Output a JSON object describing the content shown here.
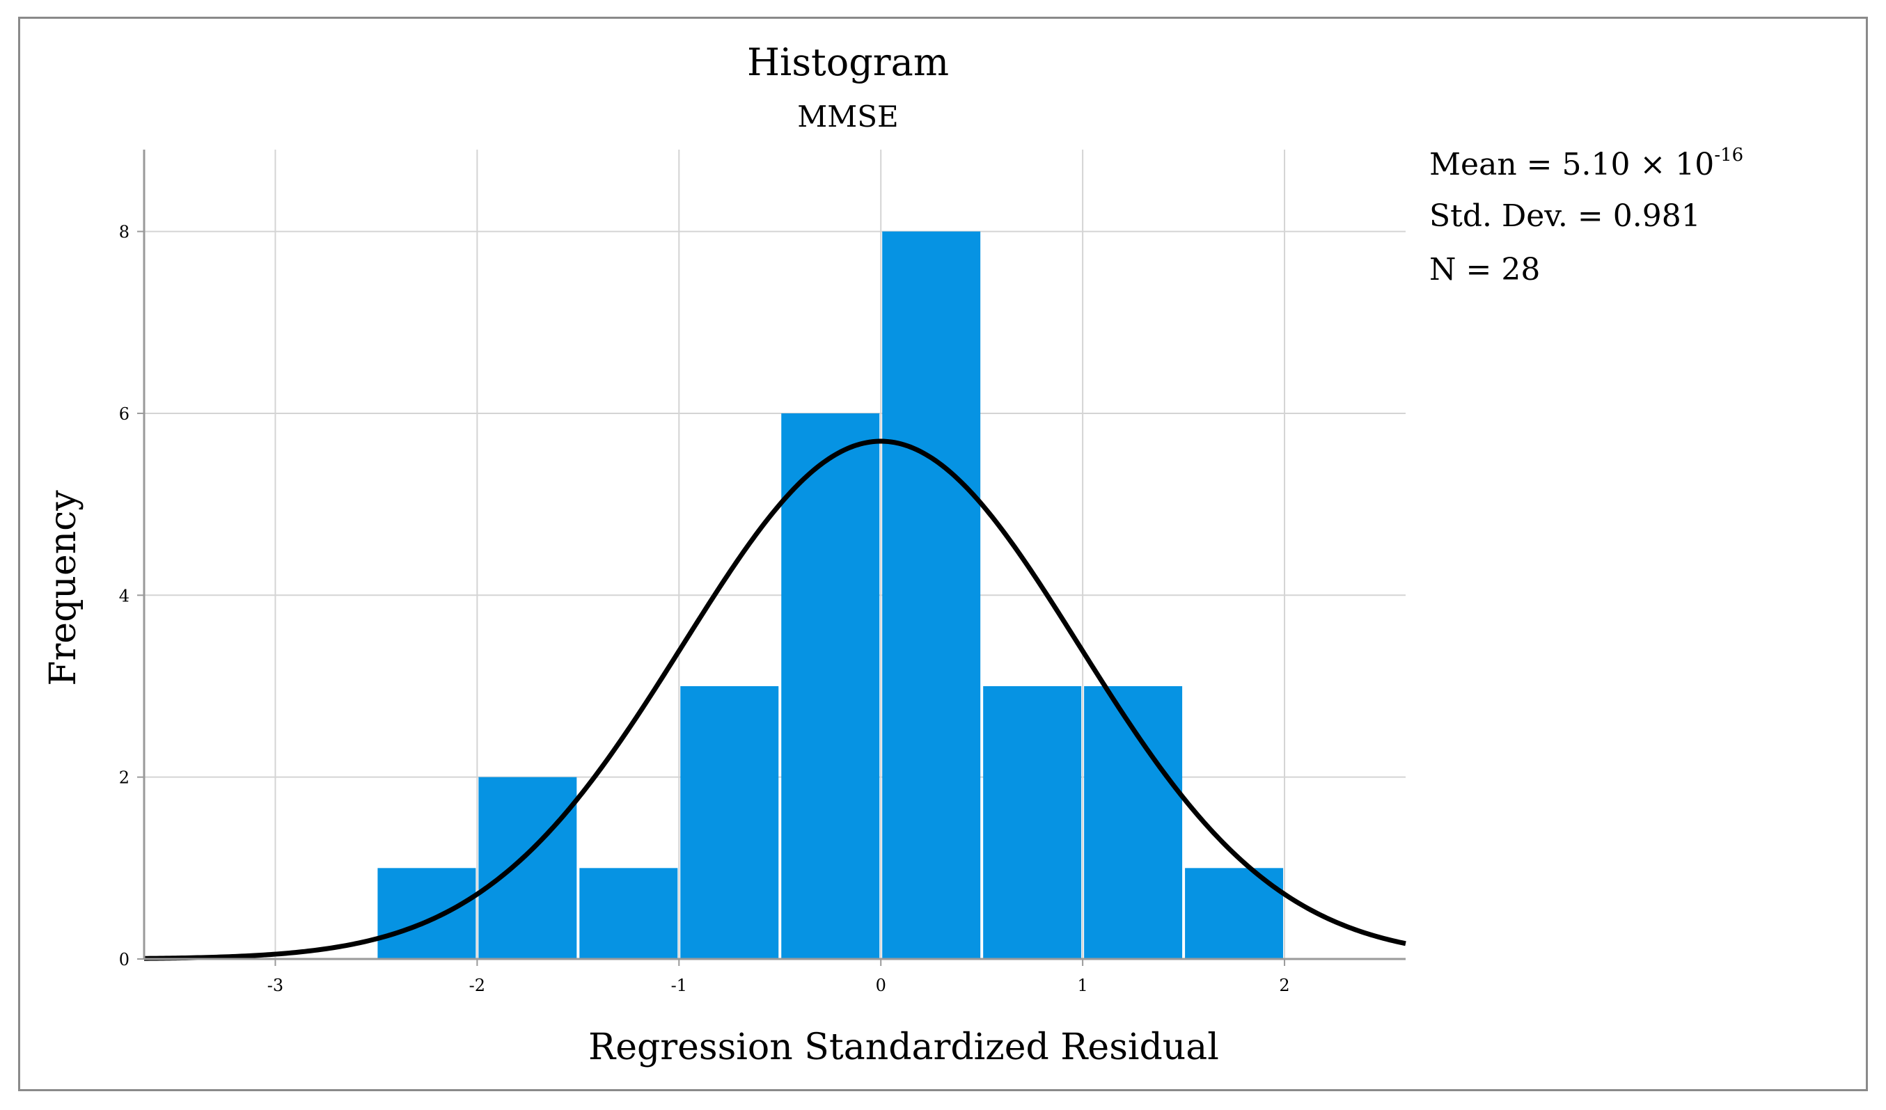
{
  "chart_data": {
    "type": "bar",
    "title": "Histogram",
    "subtitle": "MMSE",
    "xlabel": "Regression Standardized Residual",
    "ylabel": "Frequency",
    "xlim": [
      -3.65,
      2.6
    ],
    "ylim": [
      0,
      8.9
    ],
    "x_ticks": [
      -3,
      -2,
      -1,
      0,
      1,
      2
    ],
    "x_tick_labels": [
      "-3",
      "-2",
      "-1",
      "0",
      "1",
      "2"
    ],
    "y_ticks": [
      0,
      2,
      4,
      6,
      8
    ],
    "y_tick_labels": [
      "0",
      "2",
      "4",
      "6",
      "8"
    ],
    "grid": true,
    "bar_color": "#0693e3",
    "bins": [
      {
        "start": -2.5,
        "end": -2.0,
        "count": 1
      },
      {
        "start": -2.0,
        "end": -1.5,
        "count": 2
      },
      {
        "start": -1.5,
        "end": -1.0,
        "count": 1
      },
      {
        "start": -1.0,
        "end": -0.5,
        "count": 3
      },
      {
        "start": -0.5,
        "end": 0.0,
        "count": 6
      },
      {
        "start": 0.0,
        "end": 0.5,
        "count": 8
      },
      {
        "start": 0.5,
        "end": 1.0,
        "count": 3
      },
      {
        "start": 1.0,
        "end": 1.5,
        "count": 3
      },
      {
        "start": 1.5,
        "end": 2.0,
        "count": 1
      }
    ],
    "normal_curve": {
      "mean": 0,
      "std_dev": 0.981,
      "n": 28,
      "bin_width": 0.5,
      "color": "#000000"
    },
    "stats": {
      "mean_label": "Mean = 5.10 × 10",
      "mean_exponent": "-16",
      "std_dev_label": "Std. Dev. = 0.981",
      "n_label": "N = 28"
    }
  }
}
